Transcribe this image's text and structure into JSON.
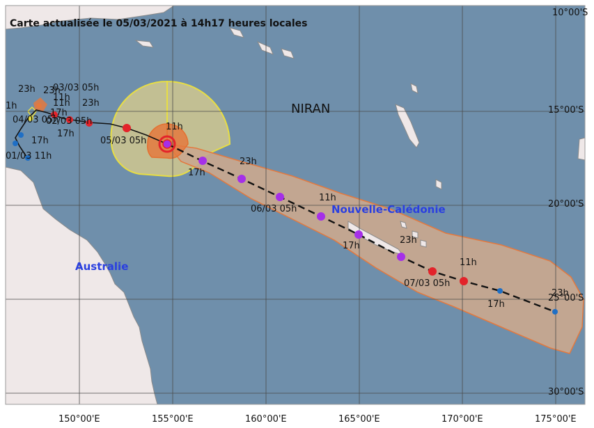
{
  "map": {
    "title": "Carte actualisée le 05/03/2021 à 14h17 heures locales",
    "storm_name": "NIRAN",
    "regions": {
      "australia": "Australie",
      "new_caledonia": "Nouvelle-Calédonie"
    },
    "lon_labels": [
      "150°00'E",
      "155°00'E",
      "160°00'E",
      "165°00'E",
      "170°00'E",
      "175°00'E"
    ],
    "lat_labels": [
      "10°00'S",
      "15°00'S",
      "20°00'S",
      "25°00'S",
      "30°00'S"
    ],
    "time_labels": {
      "t01_11": "01/03 11h",
      "t1h": "1h",
      "t23a": "23h",
      "t23b": "23h",
      "t0303": "03/03 05h",
      "t11a": "11h",
      "t11b": "11h",
      "t17a": "17h",
      "t0403": "04/03 05h",
      "t0203": "02/03 05h",
      "t23c": "23h",
      "t17b": "17h",
      "t17c": "17h",
      "t11c": "11h",
      "t0503": "05/03 05h",
      "t17d": "17h",
      "t23d": "23h",
      "t11d": "11h",
      "t0603": "06/03 05h",
      "t17e": "17h",
      "t23e": "23h",
      "t11e": "11h",
      "t0703": "07/03 05h",
      "t17f": "17h",
      "t23f": "23h"
    },
    "colors": {
      "ocean": "#6f8fab",
      "land": "#efe8e8",
      "grid": "#4a4a4a",
      "cone": "#c9a88e",
      "cone_edge": "#e4793e",
      "wind_zone": "#d1c88e",
      "wind_edge": "#e8de43",
      "track": "#111111",
      "past_point": "#1f6fc5",
      "forecast_red": "#e3232a",
      "forecast_violet": "#a52fe8",
      "region_label": "#2a3fe0"
    }
  }
}
